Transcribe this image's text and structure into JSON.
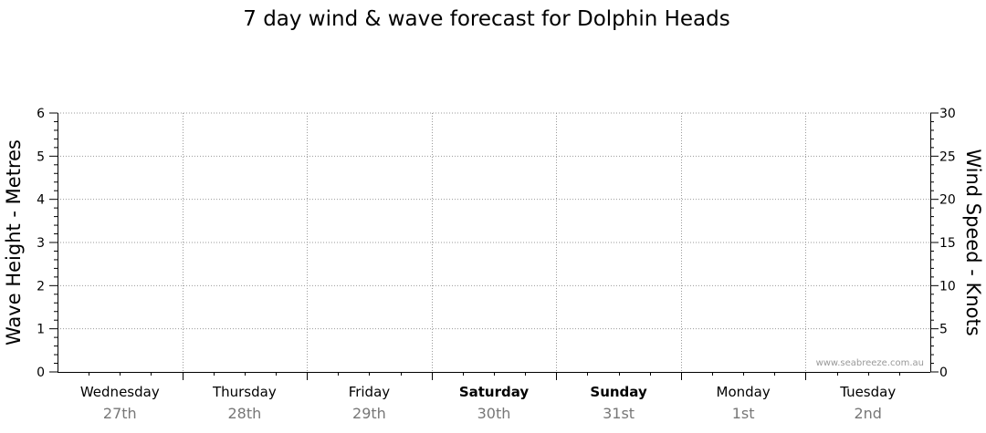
{
  "chart_data": {
    "type": "line",
    "title": "7 day wind & wave forecast for Dolphin Heads",
    "ylabel_left": "Wave Height - Metres",
    "ylabel_right": "Wind Speed - Knots",
    "ylim_left": [
      0,
      6
    ],
    "ylim_right": [
      0,
      30
    ],
    "yticks_left": [
      "0",
      "1",
      "2",
      "3",
      "4",
      "5",
      "6"
    ],
    "yticks_right": [
      "0",
      "5",
      "10",
      "15",
      "20",
      "25",
      "30"
    ],
    "days": [
      {
        "day": "Wednesday",
        "date": "27th",
        "weekend": false
      },
      {
        "day": "Thursday",
        "date": "28th",
        "weekend": false
      },
      {
        "day": "Friday",
        "date": "29th",
        "weekend": false
      },
      {
        "day": "Saturday",
        "date": "30th",
        "weekend": true
      },
      {
        "day": "Sunday",
        "date": "31st",
        "weekend": true
      },
      {
        "day": "Monday",
        "date": "1st",
        "weekend": false
      },
      {
        "day": "Tuesday",
        "date": "2nd",
        "weekend": false
      }
    ],
    "grid": true,
    "series": [],
    "watermark": "www.seabreeze.com.au"
  }
}
